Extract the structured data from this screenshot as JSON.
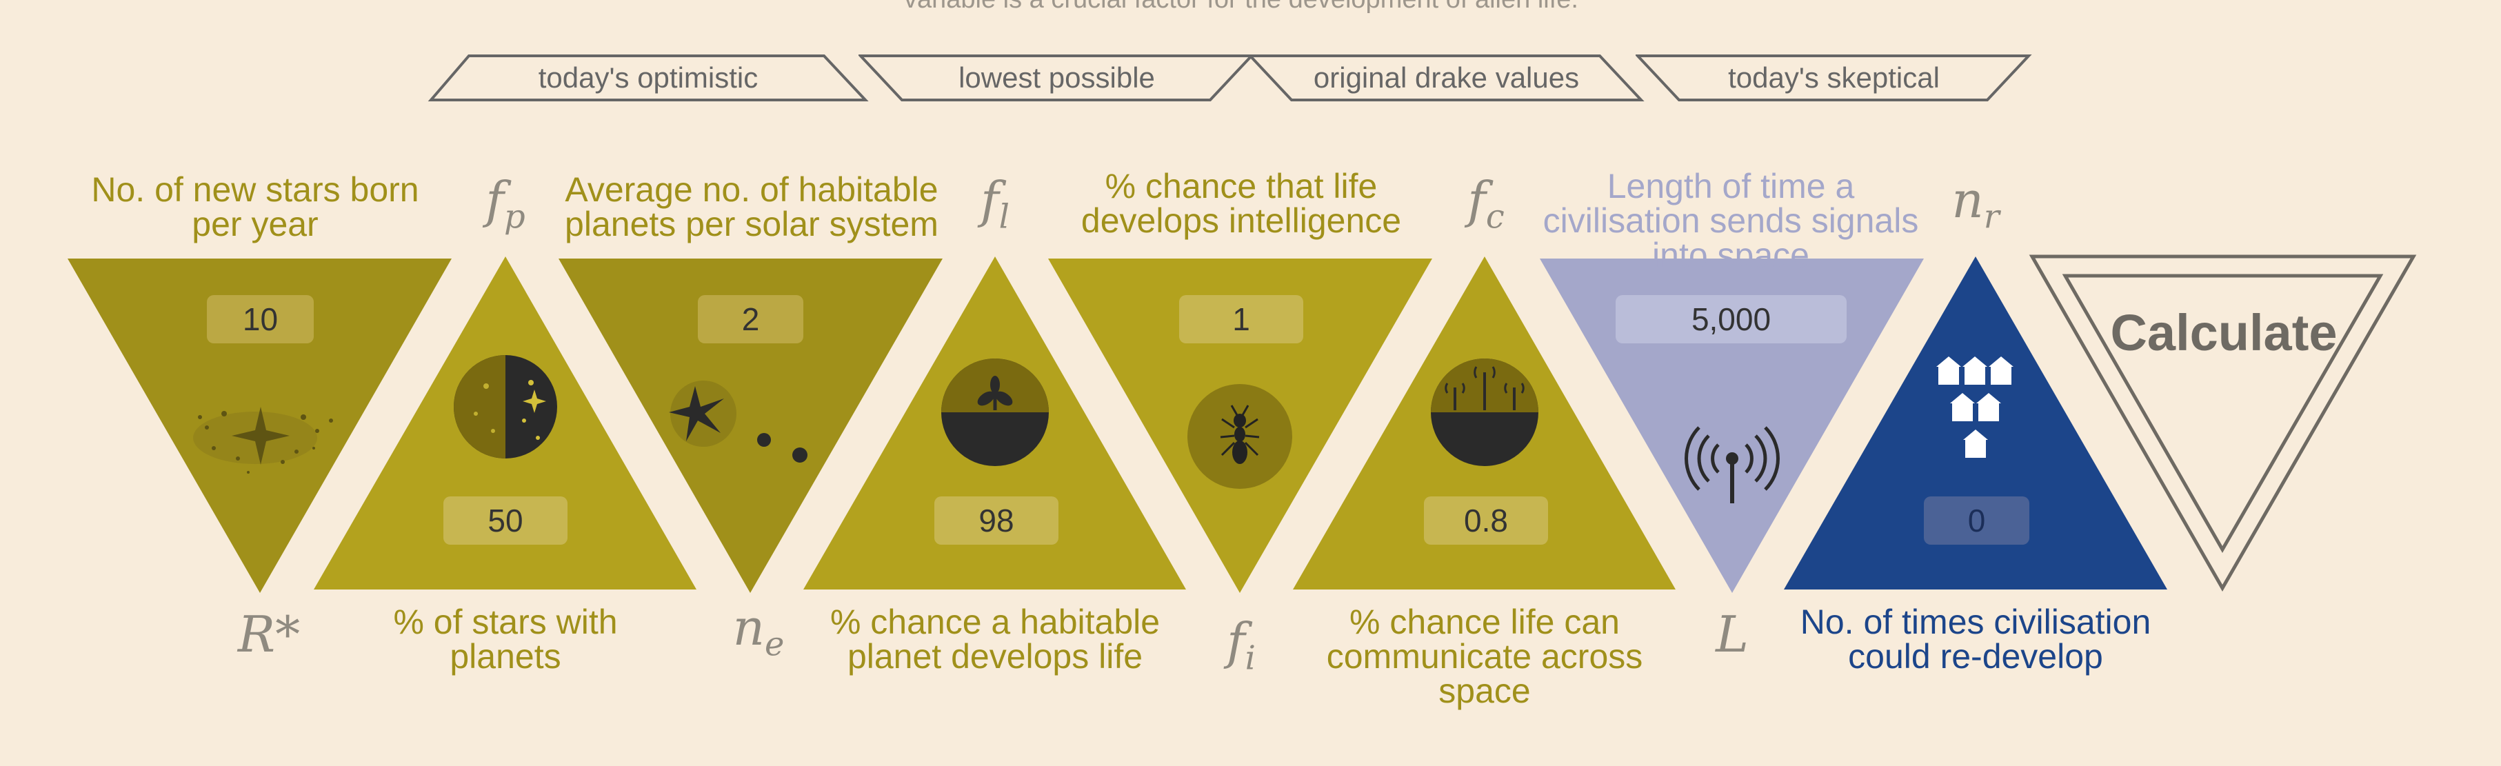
{
  "intro_text": "variable is a crucial factor for the development of alien life.",
  "presets": [
    {
      "label": "today's optimistic"
    },
    {
      "label": "lowest possible"
    },
    {
      "label": "original drake values"
    },
    {
      "label": "today's skeptical"
    }
  ],
  "params": {
    "r_star": {
      "symbol": "R*",
      "label": "No. of new stars born per year",
      "value": "10"
    },
    "f_p": {
      "symbol": "f",
      "sub": "p",
      "label": "% of stars with planets",
      "value": "50"
    },
    "n_e": {
      "symbol": "n",
      "sub": "e",
      "label": "Average no. of habitable planets per solar system",
      "value": "2"
    },
    "f_l": {
      "symbol": "f",
      "sub": "l",
      "label": "% chance a habitable planet develops life",
      "value": "98"
    },
    "f_i": {
      "symbol": "f",
      "sub": "i",
      "label": "% chance that life develops intelligence",
      "value": "1"
    },
    "f_c": {
      "symbol": "f",
      "sub": "c",
      "label": "% chance life can communicate across space",
      "value": "0.8"
    },
    "L": {
      "symbol": "L",
      "label": "Length of time a civilisation sends signals into space",
      "value": "5,000"
    },
    "n_r": {
      "symbol": "n",
      "sub": "r",
      "label": "No. of times civilisation could re-develop",
      "value": "0"
    }
  },
  "calculate_label": "Calculate",
  "colors": {
    "background": "#f8ecdb",
    "olive_dark": "#a0901a",
    "olive": "#b3a21e",
    "lavender": "#a4a7ca",
    "navy": "#1c458a",
    "text_olive": "#a0901a",
    "text_lavender": "#a4a7ca",
    "text_navy": "#1c458a",
    "symbol_gray": "#8f8a80"
  },
  "icons": {
    "r_star": "stars-cluster-icon",
    "f_p": "half-moon-stars-icon",
    "n_e": "star-planets-icon",
    "f_l": "sprouting-plant-icon",
    "f_i": "ant-icon",
    "f_c": "radio-towers-icon",
    "L": "signal-antenna-icon",
    "n_r": "houses-icon"
  }
}
